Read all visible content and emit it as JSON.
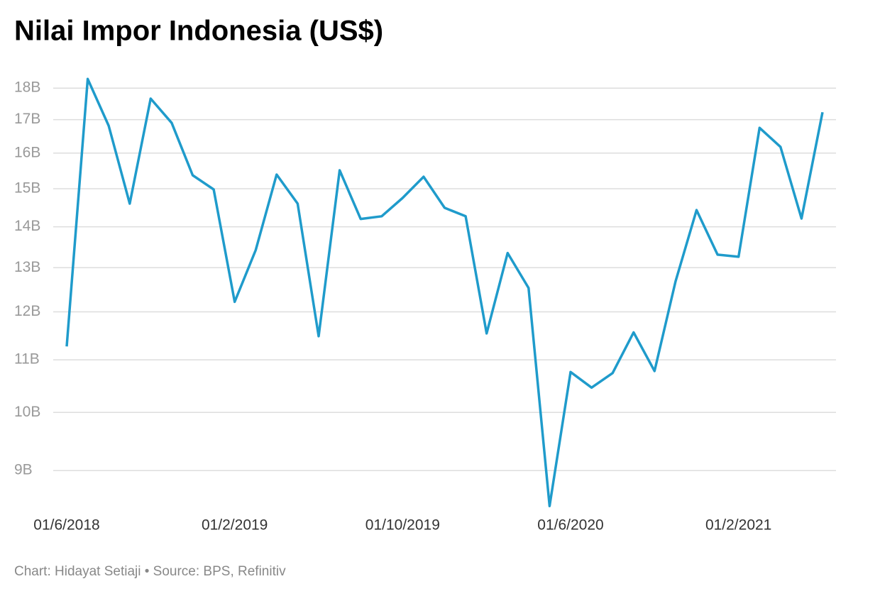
{
  "chart_data": {
    "type": "line",
    "title": "Nilai Impor Indonesia (US$)",
    "source": "Chart: Hidayat Setiaji • Source: BPS, Refinitiv",
    "categories": [
      "01/6/2018",
      null,
      null,
      null,
      null,
      null,
      null,
      null,
      "01/2/2019",
      null,
      null,
      null,
      null,
      null,
      null,
      null,
      "01/10/2019",
      null,
      null,
      null,
      null,
      null,
      null,
      null,
      "01/6/2020",
      null,
      null,
      null,
      null,
      null,
      null,
      null,
      "01/2/2021",
      null,
      null,
      null,
      null
    ],
    "series": [
      {
        "name": "Nilai Impor",
        "color": "#1f9bcb",
        "values": [
          11270000000,
          18300000000,
          16810000000,
          14600000000,
          17660000000,
          16900000000,
          15370000000,
          14980000000,
          12220000000,
          13420000000,
          15390000000,
          14600000000,
          11480000000,
          15510000000,
          14200000000,
          14270000000,
          14750000000,
          15330000000,
          14490000000,
          14270000000,
          11540000000,
          13350000000,
          12530000000,
          8440000000,
          10760000000,
          10460000000,
          10740000000,
          11560000000,
          10780000000,
          12680000000,
          14430000000,
          13310000000,
          13260000000,
          16750000000,
          16180000000,
          14210000000,
          17230000000
        ]
      }
    ],
    "log_scale": true,
    "grid": true,
    "ylim": [
      8420000000,
      18450000000
    ],
    "yticks": [
      {
        "value": 9000000000,
        "label": "9B"
      },
      {
        "value": 10000000000,
        "label": "10B"
      },
      {
        "value": 11000000000,
        "label": "11B"
      },
      {
        "value": 12000000000,
        "label": "12B"
      },
      {
        "value": 13000000000,
        "label": "13B"
      },
      {
        "value": 14000000000,
        "label": "14B"
      },
      {
        "value": 15000000000,
        "label": "15B"
      },
      {
        "value": 16000000000,
        "label": "16B"
      },
      {
        "value": 17000000000,
        "label": "17B"
      },
      {
        "value": 18000000000,
        "label": "18B"
      }
    ]
  }
}
